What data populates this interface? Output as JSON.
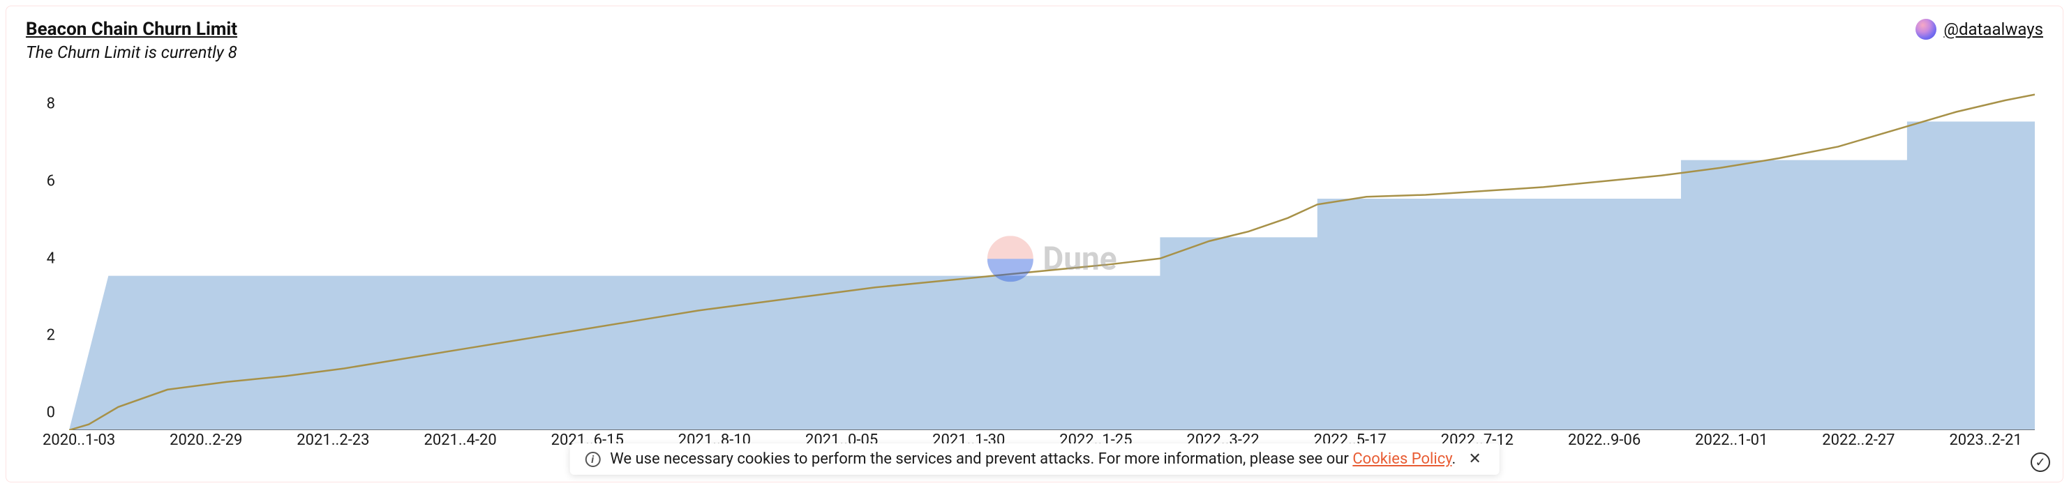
{
  "header": {
    "title": "Beacon Chain Churn Limit",
    "subtitle": "The Churn Limit is currently 8",
    "author_handle": "@dataalways"
  },
  "watermark": {
    "text": "Dune"
  },
  "chart": {
    "type": "area+line",
    "background_color": "#ffffff",
    "ylim": [
      0,
      9
    ],
    "ytick_step": 2,
    "yticks": [
      0,
      2,
      4,
      6,
      8
    ],
    "tick_fontsize": 22,
    "axis_color": "#555555",
    "x_labels": [
      "2020..1-03",
      "2020..2-29",
      "2021..2-23",
      "2021..4-20",
      "2021..6-15",
      "2021..8-10",
      "2021..0-05",
      "2021..1-30",
      "2022..1-25",
      "2022..3-22",
      "2022..5-17",
      "2022..7-12",
      "2022..9-06",
      "2022..1-01",
      "2022..2-27",
      "2023..2-21"
    ],
    "series_step": {
      "name": "churn_limit_step",
      "fill_color": "#b7cfe8",
      "fill_opacity": 1.0,
      "stroke": "none",
      "points": [
        [
          0.0,
          0.0
        ],
        [
          0.02,
          4.0
        ],
        [
          0.555,
          4.0
        ],
        [
          0.555,
          5.0
        ],
        [
          0.635,
          5.0
        ],
        [
          0.635,
          6.0
        ],
        [
          0.82,
          6.0
        ],
        [
          0.82,
          7.0
        ],
        [
          0.935,
          7.0
        ],
        [
          0.935,
          8.0
        ],
        [
          1.0,
          8.0
        ]
      ]
    },
    "series_line": {
      "name": "indicator_line",
      "stroke_color": "#a79148",
      "stroke_width": 2.5,
      "points": [
        [
          0.0,
          0.0
        ],
        [
          0.01,
          0.15
        ],
        [
          0.025,
          0.6
        ],
        [
          0.05,
          1.05
        ],
        [
          0.08,
          1.25
        ],
        [
          0.11,
          1.4
        ],
        [
          0.14,
          1.6
        ],
        [
          0.17,
          1.85
        ],
        [
          0.2,
          2.1
        ],
        [
          0.23,
          2.35
        ],
        [
          0.26,
          2.6
        ],
        [
          0.29,
          2.85
        ],
        [
          0.32,
          3.1
        ],
        [
          0.35,
          3.3
        ],
        [
          0.38,
          3.5
        ],
        [
          0.41,
          3.7
        ],
        [
          0.44,
          3.85
        ],
        [
          0.47,
          4.0
        ],
        [
          0.5,
          4.15
        ],
        [
          0.53,
          4.3
        ],
        [
          0.555,
          4.45
        ],
        [
          0.58,
          4.9
        ],
        [
          0.6,
          5.15
        ],
        [
          0.62,
          5.5
        ],
        [
          0.635,
          5.85
        ],
        [
          0.66,
          6.05
        ],
        [
          0.69,
          6.1
        ],
        [
          0.72,
          6.2
        ],
        [
          0.75,
          6.3
        ],
        [
          0.78,
          6.45
        ],
        [
          0.81,
          6.6
        ],
        [
          0.84,
          6.8
        ],
        [
          0.87,
          7.05
        ],
        [
          0.9,
          7.35
        ],
        [
          0.93,
          7.8
        ],
        [
          0.96,
          8.25
        ],
        [
          0.985,
          8.55
        ],
        [
          1.0,
          8.7
        ]
      ]
    }
  },
  "cookie_bar": {
    "text_prefix": "We use necessary cookies to perform the services and prevent attacks. For more information, please see our ",
    "link_text": "Cookies Policy",
    "text_suffix": "."
  }
}
